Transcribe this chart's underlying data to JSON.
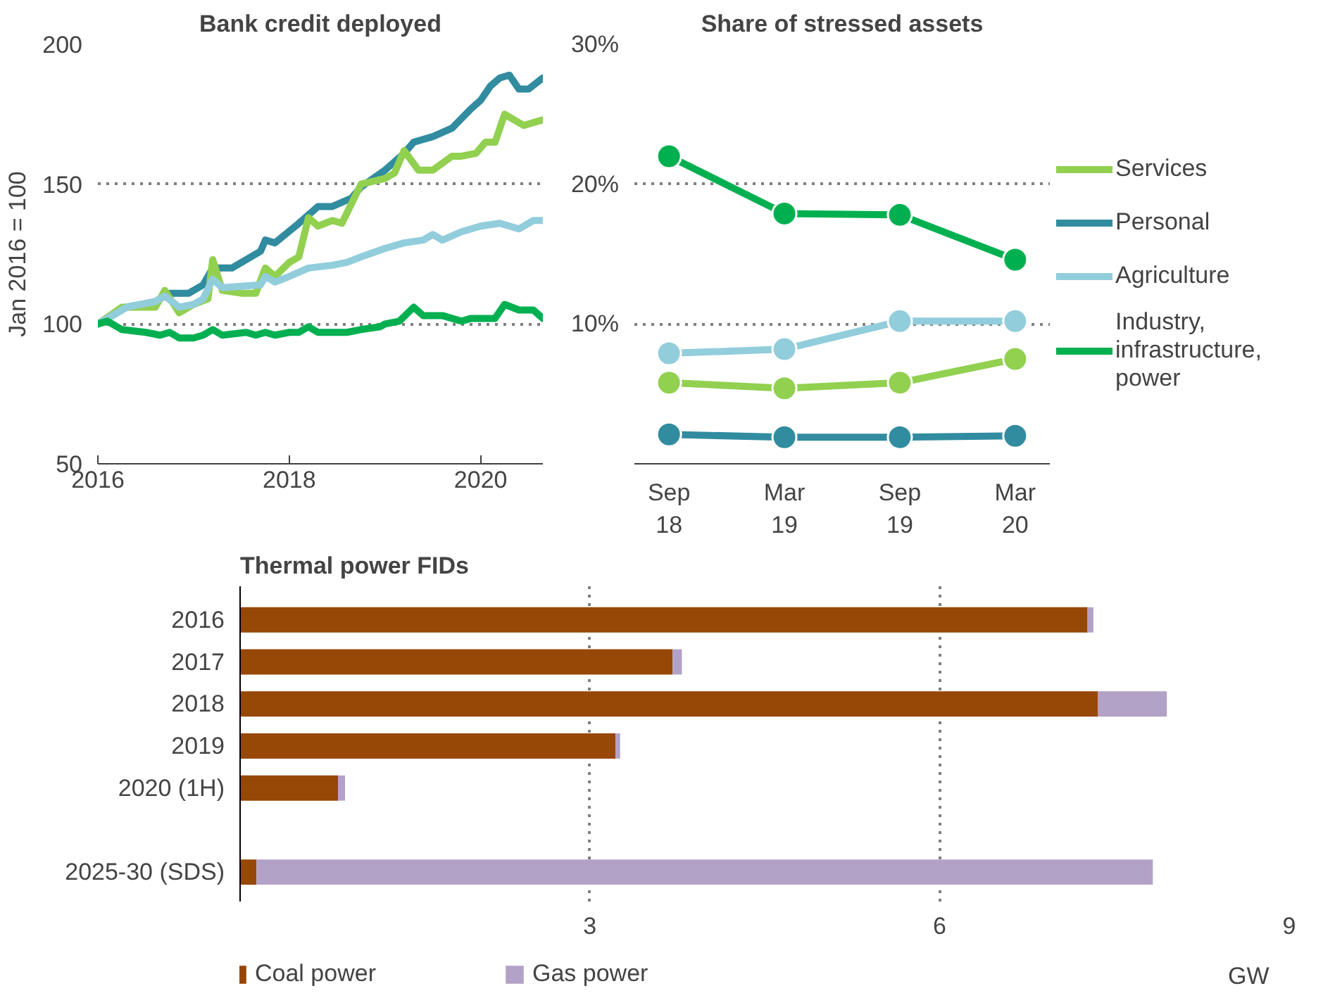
{
  "chart_data": [
    {
      "type": "line",
      "title": "Bank credit deployed",
      "ylabel": "Jan 2016 = 100",
      "xlim": [
        2016,
        2020.65
      ],
      "xticks": [
        2016,
        2018,
        2020
      ],
      "ylim": [
        50,
        200
      ],
      "yticks": [
        50,
        100,
        150,
        200
      ],
      "grid": "y",
      "legend": false,
      "line_style": "solid",
      "marker": "none",
      "series": [
        {
          "color": "#318ca0",
          "x": [
            2016,
            2016.3,
            2016.6,
            2016.75,
            2016.95,
            2017.1,
            2017.2,
            2017.4,
            2017.7,
            2017.75,
            2017.85,
            2018.1,
            2018.3,
            2018.45,
            2018.65,
            2018.75,
            2019.0,
            2019.2,
            2019.3,
            2019.5,
            2019.7,
            2019.9,
            2020.0,
            2020.1,
            2020.2,
            2020.3,
            2020.4,
            2020.5,
            2020.65
          ],
          "values": [
            100,
            106,
            108,
            111,
            111,
            114,
            120,
            120,
            126,
            130,
            129,
            136,
            142,
            142,
            145,
            149,
            155,
            161,
            165,
            167,
            170,
            177,
            180,
            185,
            188,
            189,
            184,
            184,
            188
          ]
        },
        {
          "color": "#92d050",
          "x": [
            2016,
            2016.25,
            2016.5,
            2016.6,
            2016.7,
            2016.85,
            2017.0,
            2017.15,
            2017.2,
            2017.3,
            2017.5,
            2017.65,
            2017.75,
            2017.85,
            2018.0,
            2018.1,
            2018.2,
            2018.3,
            2018.45,
            2018.55,
            2018.65,
            2018.75,
            2019.0,
            2019.1,
            2019.2,
            2019.35,
            2019.5,
            2019.7,
            2019.8,
            2019.95,
            2020.05,
            2020.15,
            2020.25,
            2020.45,
            2020.65
          ],
          "values": [
            100,
            106,
            106,
            106,
            112,
            104,
            107,
            109,
            123,
            112,
            111,
            111,
            120,
            117,
            122,
            124,
            138,
            135,
            137,
            136,
            143,
            150,
            152,
            154,
            162,
            155,
            155,
            160,
            160,
            161,
            165,
            165,
            175,
            171,
            173
          ]
        },
        {
          "color": "#92cddc",
          "x": [
            2016,
            2016.3,
            2016.6,
            2016.7,
            2016.85,
            2017.0,
            2017.1,
            2017.2,
            2017.3,
            2017.7,
            2017.75,
            2017.85,
            2018.0,
            2018.2,
            2018.45,
            2018.6,
            2018.75,
            2019.0,
            2019.2,
            2019.4,
            2019.5,
            2019.6,
            2019.8,
            2020.0,
            2020.2,
            2020.4,
            2020.55,
            2020.65
          ],
          "values": [
            100,
            106,
            108,
            110,
            106,
            107,
            109,
            116,
            113,
            114,
            117,
            115,
            117,
            120,
            121,
            122,
            124,
            127,
            129,
            130,
            132,
            130,
            133,
            135,
            136,
            134,
            137,
            137
          ]
        },
        {
          "color": "#00b050",
          "x": [
            2016,
            2016.1,
            2016.25,
            2016.5,
            2016.65,
            2016.75,
            2016.85,
            2017.0,
            2017.1,
            2017.2,
            2017.3,
            2017.55,
            2017.65,
            2017.75,
            2017.85,
            2018.0,
            2018.1,
            2018.2,
            2018.3,
            2018.6,
            2018.75,
            2018.95,
            2019.0,
            2019.15,
            2019.3,
            2019.4,
            2019.6,
            2019.8,
            2019.9,
            2020.0,
            2020.15,
            2020.25,
            2020.4,
            2020.55,
            2020.65
          ],
          "values": [
            100,
            101,
            98,
            97,
            96,
            97,
            95,
            95,
            96,
            98,
            96,
            97,
            96,
            97,
            96,
            97,
            97,
            99,
            97,
            97,
            98,
            99,
            100,
            101,
            106,
            103,
            103,
            101,
            102,
            102,
            102,
            107,
            105,
            105,
            102
          ]
        }
      ]
    },
    {
      "type": "line",
      "title": "Share of stressed assets",
      "categories": [
        "Sep 18",
        "Mar 19",
        "Sep 19",
        "Mar 20"
      ],
      "ylim": [
        0,
        30
      ],
      "yticks": [
        {
          "value": 10,
          "label": "10%"
        },
        {
          "value": 20,
          "label": "20%"
        },
        {
          "value": 30,
          "label": "30%"
        }
      ],
      "grid": "y",
      "legend": "right",
      "marker": "circle",
      "line_style": "solid",
      "series": [
        {
          "name": "Services",
          "color": "#92d050",
          "values": [
            5.8,
            5.4,
            5.8,
            7.5
          ]
        },
        {
          "name": "Personal",
          "color": "#318ca0",
          "values": [
            2.1,
            1.9,
            1.9,
            2.0
          ]
        },
        {
          "name": "Agriculture",
          "color": "#92cddc",
          "values": [
            7.9,
            8.2,
            10.2,
            10.2
          ]
        },
        {
          "name": "Industry, infrastructure, power",
          "color": "#00b050",
          "values": [
            22,
            17.9,
            17.8,
            14.6
          ]
        }
      ]
    },
    {
      "type": "bar",
      "orientation": "horizontal",
      "stacked": true,
      "title": "Thermal power FIDs",
      "xlabel": "GW",
      "categories": [
        "2016",
        "2017",
        "2018",
        "2019",
        "2020 (1H)",
        null,
        "2025-30 (SDS)"
      ],
      "xlim": [
        0,
        9
      ],
      "xticks": [
        3,
        6,
        9
      ],
      "grid": "x",
      "legend": "bottom",
      "series": [
        {
          "name": "Coal power",
          "color": "#974706",
          "values": [
            7.27,
            3.71,
            7.36,
            3.22,
            0.84,
            null,
            0.14
          ]
        },
        {
          "name": "Gas power",
          "color": "#b3a2c7",
          "values": [
            0.05,
            0.08,
            0.59,
            0.04,
            0.06,
            null,
            7.69
          ]
        }
      ]
    }
  ]
}
